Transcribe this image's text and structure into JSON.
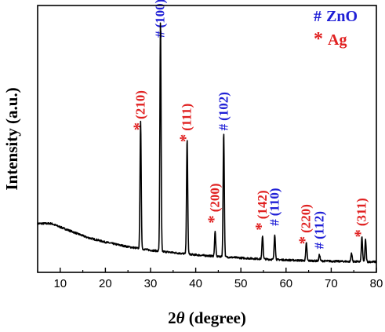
{
  "chart_data": {
    "type": "line",
    "xlabel_prefix": "2",
    "xlabel_symbol": "θ",
    "xlabel_suffix": " (degree)",
    "ylabel": "Intensity (a.u.)",
    "xlim": [
      5,
      80
    ],
    "ylim": [
      0,
      1
    ],
    "x_ticks": [
      10,
      20,
      30,
      40,
      50,
      60,
      70,
      80
    ],
    "y_ticks_shown": false,
    "grid": false,
    "legend_position": "top-right",
    "legend": [
      {
        "symbol": "#",
        "name": "ZnO",
        "color": "#1f1fd6"
      },
      {
        "symbol": "*",
        "name": "Ag",
        "color": "#e02020"
      }
    ],
    "series": [
      {
        "color": "#000000",
        "baseline": [
          [
            5,
            0.2
          ],
          [
            8,
            0.2
          ],
          [
            12,
            0.17
          ],
          [
            16,
            0.14
          ],
          [
            20,
            0.12
          ],
          [
            25,
            0.1
          ],
          [
            30,
            0.085
          ],
          [
            35,
            0.075
          ],
          [
            40,
            0.065
          ],
          [
            45,
            0.058
          ],
          [
            50,
            0.052
          ],
          [
            55,
            0.047
          ],
          [
            60,
            0.043
          ],
          [
            65,
            0.04
          ],
          [
            70,
            0.038
          ],
          [
            75,
            0.036
          ],
          [
            80,
            0.035
          ]
        ],
        "peaks": [
          {
            "x": 27.8,
            "height": 0.545
          },
          {
            "x": 32.2,
            "height": 0.993
          },
          {
            "x": 38.1,
            "height": 0.492
          },
          {
            "x": 44.3,
            "height": 0.106
          },
          {
            "x": 46.2,
            "height": 0.536
          },
          {
            "x": 54.8,
            "height": 0.101
          },
          {
            "x": 57.5,
            "height": 0.109
          },
          {
            "x": 64.5,
            "height": 0.076
          },
          {
            "x": 67.4,
            "height": 0.027
          },
          {
            "x": 74.5,
            "height": 0.037
          },
          {
            "x": 76.8,
            "height": 0.107
          },
          {
            "x": 77.6,
            "height": 0.094
          }
        ]
      }
    ],
    "peak_labels": [
      {
        "x": 27.8,
        "y": 0.6,
        "symbol": "*",
        "text": "(210)",
        "color": "#e02020",
        "phase": "Ag"
      },
      {
        "x": 32.2,
        "y": 1.0,
        "symbol": "#",
        "text": "(100)",
        "color": "#1f1fd6",
        "phase": "ZnO"
      },
      {
        "x": 38.1,
        "y": 0.55,
        "symbol": "*",
        "text": "(111)",
        "color": "#e02020",
        "phase": "Ag"
      },
      {
        "x": 44.3,
        "y": 0.2,
        "symbol": "*",
        "text": "(200)",
        "color": "#e02020",
        "phase": "Ag"
      },
      {
        "x": 46.2,
        "y": 0.6,
        "symbol": "#",
        "text": "(102)",
        "color": "#1f1fd6",
        "phase": "ZnO"
      },
      {
        "x": 54.8,
        "y": 0.17,
        "symbol": "*",
        "text": "(142)",
        "color": "#e02020",
        "phase": "Ag"
      },
      {
        "x": 57.5,
        "y": 0.19,
        "symbol": "#",
        "text": "(110)",
        "color": "#1f1fd6",
        "phase": "ZnO"
      },
      {
        "x": 64.5,
        "y": 0.11,
        "symbol": "*",
        "text": "(220)",
        "color": "#e02020",
        "phase": "Ag"
      },
      {
        "x": 67.4,
        "y": 0.09,
        "symbol": "#",
        "text": "(112)",
        "color": "#1f1fd6",
        "phase": "ZnO"
      },
      {
        "x": 76.8,
        "y": 0.14,
        "symbol": "*",
        "text": "(311)",
        "color": "#e02020",
        "phase": "Ag"
      }
    ]
  }
}
